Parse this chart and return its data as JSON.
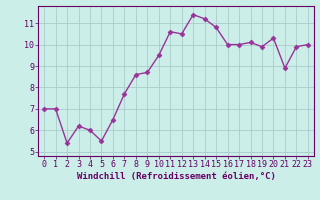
{
  "x": [
    0,
    1,
    2,
    3,
    4,
    5,
    6,
    7,
    8,
    9,
    10,
    11,
    12,
    13,
    14,
    15,
    16,
    17,
    18,
    19,
    20,
    21,
    22,
    23
  ],
  "y": [
    7.0,
    7.0,
    5.4,
    6.2,
    6.0,
    5.5,
    6.5,
    7.7,
    8.6,
    8.7,
    9.5,
    10.6,
    10.5,
    11.4,
    11.2,
    10.8,
    10.0,
    10.0,
    10.1,
    9.9,
    10.3,
    8.9,
    9.9,
    10.0
  ],
  "line_color": "#993399",
  "marker": "D",
  "markersize": 2.5,
  "linewidth": 1.0,
  "bg_color": "#cceee8",
  "grid_color": "#aacccc",
  "xlabel": "Windchill (Refroidissement éolien,°C)",
  "xlabel_fontsize": 6.5,
  "tick_fontsize": 6.0,
  "ylim": [
    4.8,
    11.8
  ],
  "yticks": [
    5,
    6,
    7,
    8,
    9,
    10,
    11
  ],
  "xticks": [
    0,
    1,
    2,
    3,
    4,
    5,
    6,
    7,
    8,
    9,
    10,
    11,
    12,
    13,
    14,
    15,
    16,
    17,
    18,
    19,
    20,
    21,
    22,
    23
  ],
  "tick_color": "#660066",
  "axis_color": "#660066",
  "label_color": "#660066",
  "spine_color": "#660066"
}
